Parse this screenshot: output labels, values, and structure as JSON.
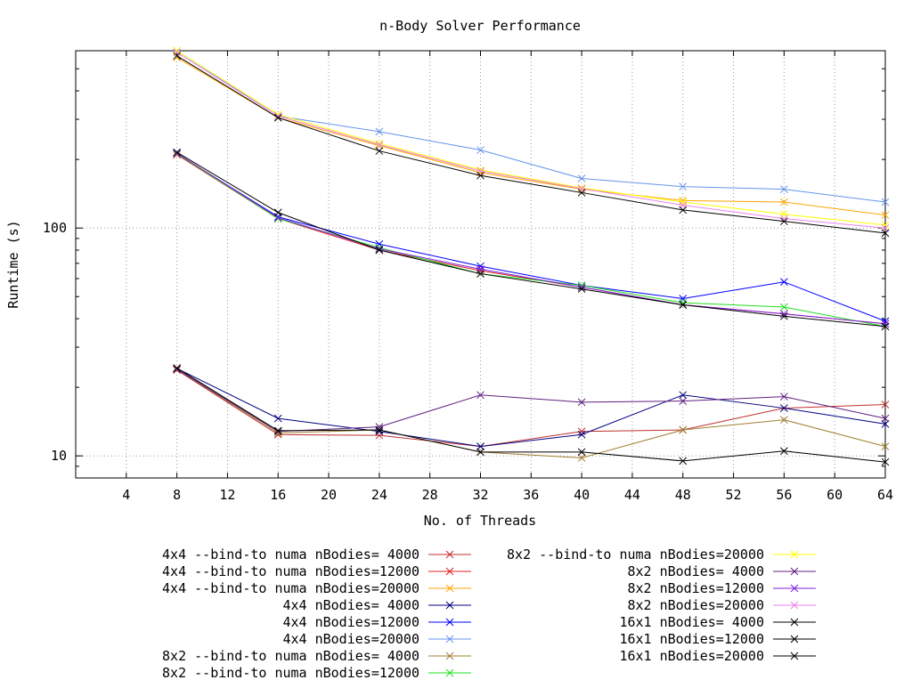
{
  "chart_data": {
    "type": "line",
    "title": "n-Body Solver Performance",
    "xlabel": "No. of Threads",
    "ylabel": "Runtime (s)",
    "xlim": [
      0,
      64
    ],
    "ylim": [
      8,
      600
    ],
    "yscale": "log",
    "grid": true,
    "legend_position": "bottom",
    "xticks": [
      4,
      8,
      12,
      16,
      20,
      24,
      28,
      32,
      36,
      40,
      44,
      48,
      52,
      56,
      60,
      64
    ],
    "yticks": [
      10,
      100
    ],
    "ytick_labels": [
      "10",
      "100"
    ],
    "series": [
      {
        "name": "4x4 --bind-to numa nBodies= 4000",
        "color": "#c03030",
        "x": [
          8,
          16,
          24,
          32,
          40,
          48,
          56,
          64
        ],
        "values": [
          23.8,
          12.4,
          12.3,
          11.0,
          12.8,
          13.0,
          16.2,
          16.8
        ]
      },
      {
        "name": "4x4 --bind-to numa nBodies=12000",
        "color": "#e02020",
        "x": [
          8,
          16,
          24,
          32,
          40,
          48,
          56,
          64
        ],
        "values": [
          210,
          110,
          80,
          65,
          55,
          46,
          42,
          38
        ]
      },
      {
        "name": "4x4 --bind-to numa nBodies=20000",
        "color": "#ffa500",
        "x": [
          8,
          16,
          24,
          32,
          40,
          48,
          56,
          64
        ],
        "values": [
          560,
          305,
          230,
          175,
          148,
          132,
          130,
          114
        ]
      },
      {
        "name": "4x4 nBodies= 4000",
        "color": "#000080",
        "x": [
          8,
          16,
          24,
          32,
          40,
          48,
          56,
          64
        ],
        "values": [
          24.2,
          14.6,
          12.8,
          11.0,
          12.4,
          18.5,
          16.2,
          13.8
        ]
      },
      {
        "name": "4x4 nBodies=12000",
        "color": "#0000ff",
        "x": [
          8,
          16,
          24,
          32,
          40,
          48,
          56,
          64
        ],
        "values": [
          212,
          112,
          85,
          68,
          56,
          49,
          58,
          39
        ]
      },
      {
        "name": "4x4 nBodies=20000",
        "color": "#6495ed",
        "x": [
          8,
          16,
          24,
          32,
          40,
          48,
          56,
          64
        ],
        "values": [
          600,
          310,
          265,
          220,
          165,
          152,
          148,
          130
        ]
      },
      {
        "name": "8x2 --bind-to numa nBodies= 4000",
        "color": "#a08030",
        "x": [
          8,
          16,
          24,
          32,
          40,
          48,
          56,
          64
        ],
        "values": [
          24.0,
          12.6,
          13.0,
          10.4,
          9.8,
          13.0,
          14.4,
          11.0
        ]
      },
      {
        "name": "8x2 --bind-to numa nBodies=12000",
        "color": "#20e020",
        "x": [
          8,
          16,
          24,
          32,
          40,
          48,
          56,
          64
        ],
        "values": [
          212,
          110,
          82,
          63,
          56,
          47,
          45,
          37
        ]
      },
      {
        "name": "8x2 --bind-to numa nBodies=20000",
        "color": "#ffff00",
        "x": [
          8,
          16,
          24,
          32,
          40,
          48,
          56,
          64
        ],
        "values": [
          600,
          315,
          235,
          180,
          150,
          130,
          115,
          103
        ]
      },
      {
        "name": "8x2 nBodies= 4000",
        "color": "#602080",
        "x": [
          8,
          16,
          24,
          32,
          40,
          48,
          56,
          64
        ],
        "values": [
          24.0,
          12.8,
          13.4,
          18.5,
          17.2,
          17.4,
          18.2,
          14.6
        ]
      },
      {
        "name": "8x2 nBodies=12000",
        "color": "#8020e0",
        "x": [
          8,
          16,
          24,
          32,
          40,
          48,
          56,
          64
        ],
        "values": [
          213,
          111,
          81,
          66,
          55,
          46,
          42,
          38
        ]
      },
      {
        "name": "8x2 nBodies=20000",
        "color": "#ee82ee",
        "x": [
          8,
          16,
          24,
          32,
          40,
          48,
          56,
          64
        ],
        "values": [
          590,
          310,
          232,
          178,
          149,
          126,
          110,
          100
        ]
      },
      {
        "name": "16x1 nBodies= 4000",
        "color": "#000000",
        "x": [
          8,
          16,
          24,
          32,
          40,
          48,
          56,
          64
        ],
        "values": [
          24.3,
          12.9,
          13.0,
          10.4,
          10.4,
          9.5,
          10.5,
          9.4
        ]
      },
      {
        "name": "16x1 nBodies=12000",
        "color": "#000000",
        "x": [
          8,
          16,
          24,
          32,
          40,
          48,
          56,
          64
        ],
        "values": [
          215,
          117,
          80,
          63,
          54,
          46,
          41,
          37
        ]
      },
      {
        "name": "16x1 nBodies=20000",
        "color": "#000000",
        "x": [
          8,
          16,
          24,
          32,
          40,
          48,
          56,
          64
        ],
        "values": [
          570,
          305,
          218,
          170,
          143,
          120,
          107,
          95
        ]
      }
    ]
  }
}
